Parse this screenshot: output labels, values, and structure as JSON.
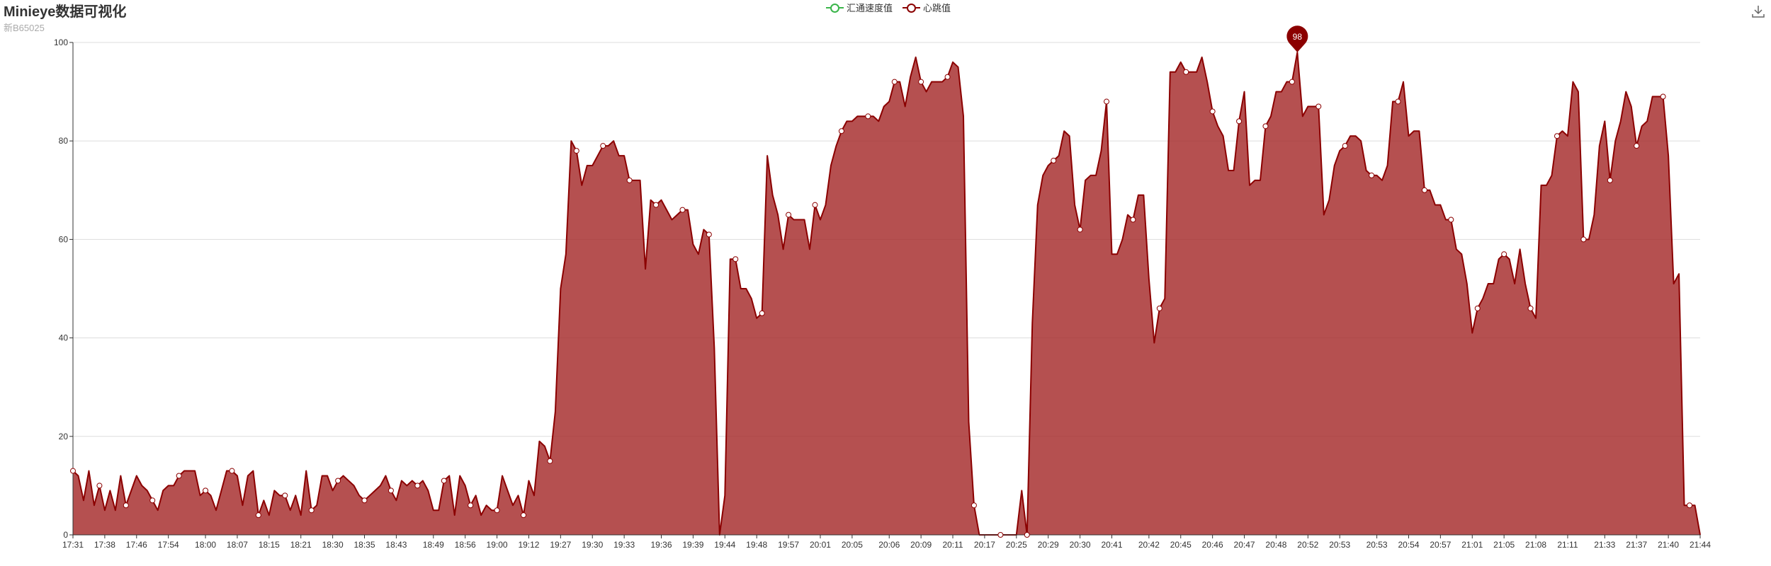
{
  "header": {
    "title": "Minieye数据可视化",
    "subtitle": "新B65025"
  },
  "toolbox": {
    "icon": "download-icon"
  },
  "colors": {
    "series1": "#3ab54a",
    "series2": "#8b0000",
    "series2_fill": "#a52a2a",
    "marker": "#8b0000"
  },
  "chart_data": {
    "type": "area",
    "title": "Minieye数据可视化",
    "subtitle": "新B65025",
    "legend_position": "top-center",
    "grid": true,
    "ylim": [
      0,
      100
    ],
    "yticks": [
      0,
      20,
      40,
      60,
      80,
      100
    ],
    "xlabels": [
      "17:31",
      "17:38",
      "17:46",
      "17:54",
      "18:00",
      "18:07",
      "18:15",
      "18:21",
      "18:30",
      "18:35",
      "18:43",
      "18:49",
      "18:56",
      "19:00",
      "19:12",
      "19:27",
      "19:30",
      "19:33",
      "19:36",
      "19:39",
      "19:44",
      "19:48",
      "19:57",
      "20:01",
      "20:05",
      "20:06",
      "20:09",
      "20:11",
      "20:17",
      "20:25",
      "20:29",
      "20:30",
      "20:41",
      "20:42",
      "20:45",
      "20:46",
      "20:47",
      "20:48",
      "20:52",
      "20:53",
      "20:53",
      "20:54",
      "20:57",
      "21:01",
      "21:05",
      "21:08",
      "21:11",
      "21:33",
      "21:37",
      "21:40",
      "21:44"
    ],
    "series": [
      {
        "name": "汇通速度值",
        "values": []
      },
      {
        "name": "心跳值",
        "values": [
          13,
          12,
          7,
          13,
          6,
          10,
          5,
          9,
          5,
          12,
          6,
          9,
          12,
          10,
          9,
          7,
          5,
          9,
          10,
          10,
          12,
          13,
          13,
          13,
          8,
          9,
          8,
          5,
          9,
          13,
          13,
          12,
          6,
          12,
          13,
          4,
          7,
          4,
          9,
          8,
          8,
          5,
          8,
          4,
          13,
          5,
          6,
          12,
          12,
          9,
          11,
          12,
          11,
          10,
          8,
          7,
          8,
          9,
          10,
          12,
          9,
          7,
          11,
          10,
          11,
          10,
          11,
          9,
          5,
          5,
          11,
          12,
          4,
          12,
          10,
          6,
          8,
          4,
          6,
          5,
          5,
          12,
          9,
          6,
          8,
          4,
          11,
          8,
          19,
          18,
          15,
          25,
          50,
          57,
          80,
          78,
          71,
          75,
          75,
          77,
          79,
          79,
          80,
          77,
          77,
          72,
          72,
          72,
          54,
          68,
          67,
          68,
          66,
          64,
          65,
          66,
          66,
          59,
          57,
          62,
          61,
          38,
          0,
          8,
          56,
          56,
          50,
          50,
          48,
          44,
          45,
          77,
          69,
          65,
          58,
          65,
          64,
          64,
          64,
          58,
          67,
          64,
          67,
          75,
          79,
          82,
          84,
          84,
          85,
          85,
          85,
          85,
          84,
          87,
          88,
          92,
          92,
          87,
          93,
          97,
          92,
          90,
          92,
          92,
          92,
          93,
          96,
          95,
          85,
          23,
          6,
          0,
          0,
          0,
          0,
          0,
          0,
          0,
          0,
          9,
          0,
          43,
          67,
          73,
          75,
          76,
          77,
          82,
          81,
          67,
          62,
          72,
          73,
          73,
          78,
          88,
          57,
          57,
          60,
          65,
          64,
          69,
          69,
          52,
          39,
          46,
          48,
          94,
          94,
          96,
          94,
          94,
          94,
          97,
          92,
          86,
          83,
          81,
          74,
          74,
          84,
          90,
          71,
          72,
          72,
          83,
          85,
          90,
          90,
          92,
          92,
          98,
          85,
          87,
          87,
          87,
          65,
          68,
          75,
          78,
          79,
          81,
          81,
          80,
          74,
          73,
          73,
          72,
          75,
          88,
          88,
          92,
          81,
          82,
          82,
          70,
          70,
          67,
          67,
          64,
          64,
          58,
          57,
          51,
          41,
          46,
          48,
          51,
          51,
          56,
          57,
          56,
          51,
          58,
          51,
          46,
          44,
          71,
          71,
          73,
          81,
          82,
          81,
          92,
          90,
          60,
          60,
          65,
          79,
          84,
          72,
          80,
          84,
          90,
          87,
          79,
          83,
          84,
          89,
          89,
          89,
          77,
          51,
          53,
          6,
          6,
          6,
          0
        ]
      }
    ],
    "annotations": [
      {
        "type": "max",
        "series": "心跳值",
        "value": 98,
        "label": "98"
      }
    ]
  }
}
